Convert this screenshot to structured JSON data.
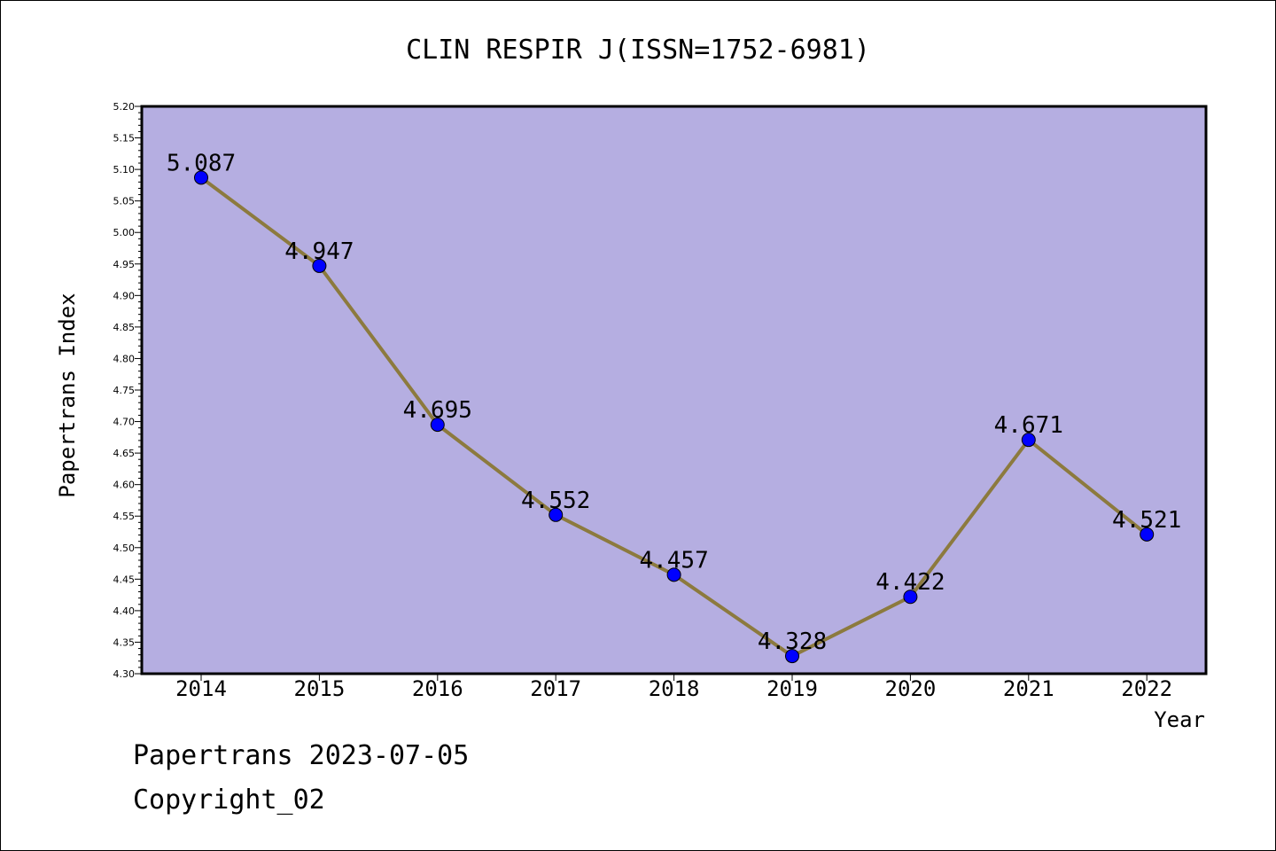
{
  "chart_data": {
    "type": "line",
    "title": "CLIN RESPIR J(ISSN=1752-6981)",
    "xlabel": "Year",
    "ylabel": "Papertrans Index",
    "categories": [
      "2014",
      "2015",
      "2016",
      "2017",
      "2018",
      "2019",
      "2020",
      "2021",
      "2022"
    ],
    "values": [
      5.087,
      4.947,
      4.695,
      4.552,
      4.457,
      4.328,
      4.422,
      4.671,
      4.521
    ],
    "data_labels": [
      "5.087",
      "4.947",
      "4.695",
      "4.552",
      "4.457",
      "4.328",
      "4.422",
      "4.671",
      "4.521"
    ],
    "ylim": [
      4.3,
      5.2
    ],
    "yticks": [
      "4.30",
      "4.35",
      "4.40",
      "4.45",
      "4.50",
      "4.55",
      "4.60",
      "4.65",
      "4.70",
      "4.75",
      "4.80",
      "4.85",
      "4.90",
      "4.95",
      "5.00",
      "5.05",
      "5.10",
      "5.15",
      "5.20"
    ],
    "grid": false,
    "colors": {
      "plot_background": "#b5aee1",
      "line": "#8c7a3e",
      "marker": "#0000ff"
    }
  },
  "footer": {
    "line1": "Papertrans 2023-07-05",
    "line2": "Copyright_02"
  }
}
